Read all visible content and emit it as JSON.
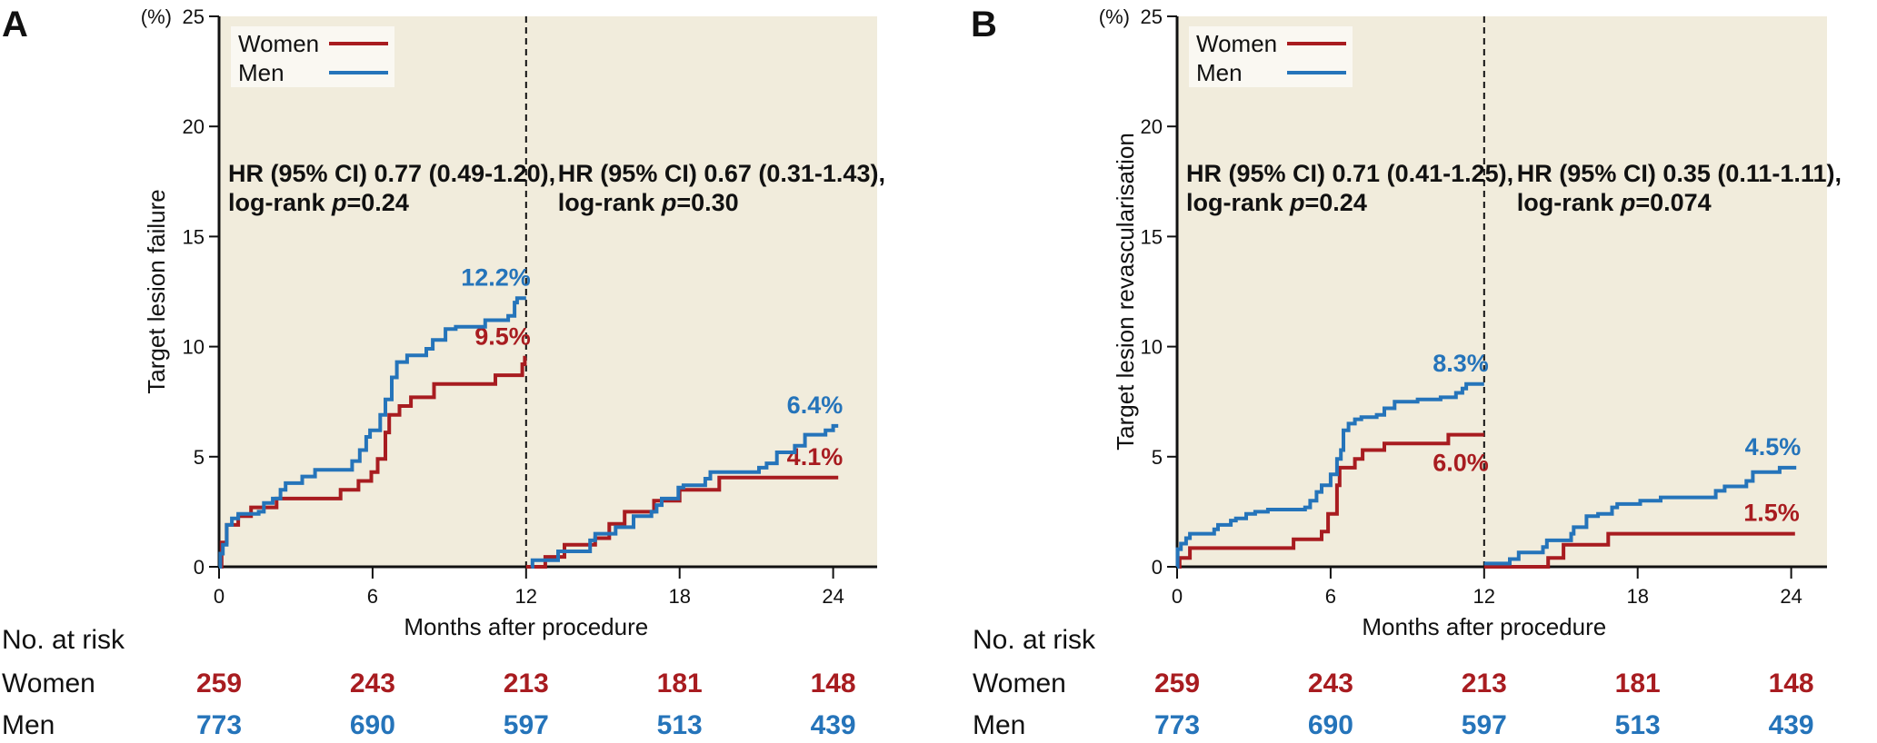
{
  "colors": {
    "women": "#a81c20",
    "men": "#2574ba",
    "plot_bg": "#f1ecdc",
    "legend_bg": "#faf8f2"
  },
  "chart_data": [
    {
      "type": "line",
      "subtype": "kaplan-meier-step",
      "panel": "A",
      "ylabel": "Target lesion failure",
      "yunit": "(%)",
      "xlabel": "Months after procedure",
      "xlim": [
        0,
        24
      ],
      "ylim": [
        0,
        25
      ],
      "xticks": [
        0,
        6,
        12,
        18,
        24
      ],
      "yticks": [
        0,
        5,
        10,
        15,
        20,
        25
      ],
      "landmark": 12,
      "legend": {
        "position": "top-left",
        "entries": [
          "Women",
          "Men"
        ]
      },
      "annotations": [
        {
          "line1": "HR (95% CI) 0.77 (0.49-1.20),",
          "line2_pre": "log-rank ",
          "line2_p": "p",
          "line2_post": "=0.24"
        },
        {
          "line1": "HR (95% CI) 0.67 (0.31-1.43),",
          "line2_pre": "log-rank ",
          "line2_p": "p",
          "line2_post": "=0.30"
        }
      ],
      "series": [
        {
          "name": "Women",
          "segment": "0-12",
          "end_label": "9.5%",
          "points": [
            [
              0,
              0
            ],
            [
              0.1,
              1.1
            ],
            [
              0.3,
              1.9
            ],
            [
              0.75,
              2.3
            ],
            [
              1.25,
              2.7
            ],
            [
              2.25,
              3.1
            ],
            [
              4.75,
              3.5
            ],
            [
              5.45,
              3.9
            ],
            [
              5.95,
              4.3
            ],
            [
              6.2,
              4.9
            ],
            [
              6.5,
              6.1
            ],
            [
              6.65,
              6.9
            ],
            [
              7.05,
              7.3
            ],
            [
              7.5,
              7.7
            ],
            [
              8.4,
              8.3
            ],
            [
              10.8,
              8.7
            ],
            [
              11.85,
              9.2
            ],
            [
              11.95,
              9.5
            ],
            [
              12,
              9.5
            ]
          ]
        },
        {
          "name": "Men",
          "segment": "0-12",
          "end_label": "12.2%",
          "points": [
            [
              0,
              0
            ],
            [
              0.05,
              0.6
            ],
            [
              0.15,
              1.0
            ],
            [
              0.3,
              1.9
            ],
            [
              0.5,
              2.2
            ],
            [
              0.75,
              2.4
            ],
            [
              1.55,
              2.5
            ],
            [
              1.75,
              2.9
            ],
            [
              2.1,
              3.1
            ],
            [
              2.4,
              3.5
            ],
            [
              2.6,
              3.8
            ],
            [
              3.25,
              4.1
            ],
            [
              3.75,
              4.4
            ],
            [
              5.2,
              4.8
            ],
            [
              5.5,
              5.3
            ],
            [
              5.75,
              5.9
            ],
            [
              5.9,
              6.2
            ],
            [
              6.3,
              6.9
            ],
            [
              6.5,
              7.6
            ],
            [
              6.75,
              8.6
            ],
            [
              6.95,
              9.3
            ],
            [
              7.35,
              9.6
            ],
            [
              8.1,
              9.9
            ],
            [
              8.35,
              10.3
            ],
            [
              8.85,
              10.8
            ],
            [
              9.25,
              10.9
            ],
            [
              10.4,
              11.2
            ],
            [
              11.3,
              11.4
            ],
            [
              11.55,
              12.0
            ],
            [
              11.65,
              12.2
            ],
            [
              12,
              12.2
            ]
          ]
        },
        {
          "name": "Women",
          "segment": "12-24",
          "end_label": "4.1%",
          "points": [
            [
              12,
              0
            ],
            [
              12.75,
              0.45
            ],
            [
              13.5,
              1.0
            ],
            [
              14.7,
              1.3
            ],
            [
              15.25,
              1.95
            ],
            [
              15.85,
              2.5
            ],
            [
              17.0,
              3.0
            ],
            [
              18.0,
              3.5
            ],
            [
              19.55,
              4.05
            ],
            [
              24.2,
              4.05
            ]
          ]
        },
        {
          "name": "Men",
          "segment": "12-24",
          "end_label": "6.4%",
          "points": [
            [
              12.2,
              0
            ],
            [
              12.25,
              0.3
            ],
            [
              13.25,
              0.7
            ],
            [
              14.5,
              1.2
            ],
            [
              14.7,
              1.5
            ],
            [
              15.5,
              1.8
            ],
            [
              16.2,
              2.3
            ],
            [
              16.9,
              2.5
            ],
            [
              17.1,
              2.8
            ],
            [
              17.3,
              3.1
            ],
            [
              17.95,
              3.6
            ],
            [
              18.15,
              3.7
            ],
            [
              19.0,
              4.0
            ],
            [
              19.2,
              4.3
            ],
            [
              21.1,
              4.5
            ],
            [
              21.4,
              4.7
            ],
            [
              21.8,
              5.2
            ],
            [
              22.5,
              5.5
            ],
            [
              22.9,
              6.0
            ],
            [
              23.7,
              6.2
            ],
            [
              24.0,
              6.4
            ],
            [
              24.2,
              6.4
            ]
          ]
        }
      ],
      "risk_table": {
        "title": "No. at risk",
        "times": [
          0,
          6,
          12,
          18,
          24
        ],
        "rows": [
          {
            "label": "Women",
            "values": [
              259,
              243,
              213,
              181,
              148
            ]
          },
          {
            "label": "Men",
            "values": [
              773,
              690,
              597,
              513,
              439
            ]
          }
        ]
      }
    },
    {
      "type": "line",
      "subtype": "kaplan-meier-step",
      "panel": "B",
      "ylabel": "Target lesion revascularisation",
      "yunit": "(%)",
      "xlabel": "Months after procedure",
      "xlim": [
        0,
        24
      ],
      "ylim": [
        0,
        25
      ],
      "xticks": [
        0,
        6,
        12,
        18,
        24
      ],
      "yticks": [
        0,
        5,
        10,
        15,
        20,
        25
      ],
      "landmark": 12,
      "legend": {
        "position": "top-left",
        "entries": [
          "Women",
          "Men"
        ]
      },
      "annotations": [
        {
          "line1": "HR (95% CI) 0.71 (0.41-1.25),",
          "line2_pre": "log-rank ",
          "line2_p": "p",
          "line2_post": "=0.24"
        },
        {
          "line1": "HR (95% CI) 0.35 (0.11-1.11),",
          "line2_pre": "log-rank ",
          "line2_p": "p",
          "line2_post": "=0.074"
        }
      ],
      "series": [
        {
          "name": "Women",
          "segment": "0-12",
          "end_label": "6.0%",
          "points": [
            [
              0,
              0
            ],
            [
              0.1,
              0.4
            ],
            [
              0.5,
              0.85
            ],
            [
              4.55,
              1.25
            ],
            [
              5.65,
              1.6
            ],
            [
              5.9,
              2.4
            ],
            [
              6.25,
              3.7
            ],
            [
              6.35,
              4.5
            ],
            [
              6.95,
              4.9
            ],
            [
              7.25,
              5.3
            ],
            [
              8.1,
              5.6
            ],
            [
              10.6,
              6.0
            ],
            [
              12,
              6.0
            ]
          ]
        },
        {
          "name": "Men",
          "segment": "0-12",
          "end_label": "8.3%",
          "points": [
            [
              0,
              0
            ],
            [
              0.02,
              0.8
            ],
            [
              0.15,
              1.05
            ],
            [
              0.35,
              1.3
            ],
            [
              0.5,
              1.5
            ],
            [
              1.45,
              1.7
            ],
            [
              1.6,
              1.9
            ],
            [
              2.1,
              2.1
            ],
            [
              2.3,
              2.2
            ],
            [
              2.7,
              2.4
            ],
            [
              3.05,
              2.5
            ],
            [
              3.55,
              2.6
            ],
            [
              5.0,
              2.7
            ],
            [
              5.2,
              3.0
            ],
            [
              5.45,
              3.4
            ],
            [
              5.65,
              3.7
            ],
            [
              6.0,
              4.2
            ],
            [
              6.25,
              4.9
            ],
            [
              6.4,
              5.3
            ],
            [
              6.5,
              6.2
            ],
            [
              6.7,
              6.5
            ],
            [
              6.95,
              6.7
            ],
            [
              7.2,
              6.8
            ],
            [
              7.8,
              6.9
            ],
            [
              8.1,
              7.2
            ],
            [
              8.5,
              7.5
            ],
            [
              9.4,
              7.6
            ],
            [
              10.3,
              7.7
            ],
            [
              10.9,
              7.9
            ],
            [
              11.15,
              8.1
            ],
            [
              11.3,
              8.3
            ],
            [
              12,
              8.3
            ]
          ]
        },
        {
          "name": "Women",
          "segment": "12-24",
          "end_label": "1.5%",
          "points": [
            [
              12,
              0
            ],
            [
              14.5,
              0.4
            ],
            [
              15.1,
              1.0
            ],
            [
              16.85,
              1.5
            ],
            [
              24.15,
              1.5
            ]
          ]
        },
        {
          "name": "Men",
          "segment": "12-24",
          "end_label": "4.5%",
          "points": [
            [
              12,
              0.15
            ],
            [
              13.0,
              0.35
            ],
            [
              13.35,
              0.65
            ],
            [
              14.3,
              0.9
            ],
            [
              14.45,
              1.2
            ],
            [
              15.4,
              1.5
            ],
            [
              15.5,
              1.8
            ],
            [
              16.0,
              2.3
            ],
            [
              16.45,
              2.4
            ],
            [
              17.0,
              2.7
            ],
            [
              17.2,
              2.85
            ],
            [
              18.1,
              3.0
            ],
            [
              18.9,
              3.15
            ],
            [
              21.05,
              3.45
            ],
            [
              21.4,
              3.65
            ],
            [
              22.25,
              3.9
            ],
            [
              22.5,
              4.3
            ],
            [
              23.55,
              4.5
            ],
            [
              24.2,
              4.5
            ]
          ]
        }
      ],
      "risk_table": {
        "title": "No. at risk",
        "times": [
          0,
          6,
          12,
          18,
          24
        ],
        "rows": [
          {
            "label": "Women",
            "values": [
              259,
              243,
              213,
              181,
              148
            ]
          },
          {
            "label": "Men",
            "values": [
              773,
              690,
              597,
              513,
              439
            ]
          }
        ]
      }
    }
  ]
}
